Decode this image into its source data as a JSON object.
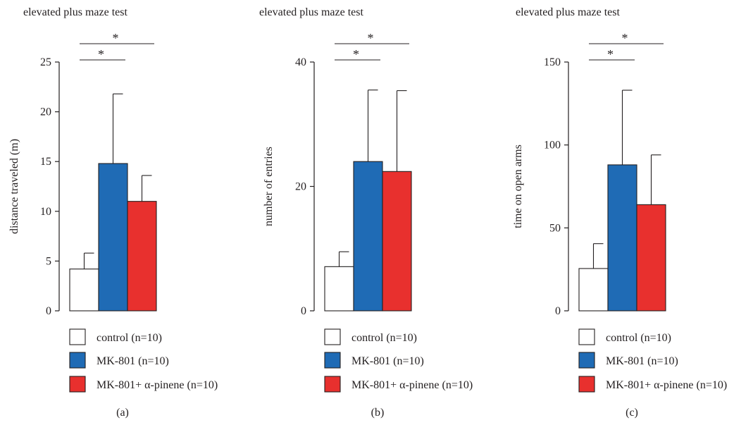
{
  "colors": {
    "control": "#ffffff",
    "mk801": "#1f6bb5",
    "pinene": "#e8302e",
    "ink": "#231f20"
  },
  "chart_data": [
    {
      "type": "bar",
      "panel_label": "(a)",
      "title": "elevated plus maze test",
      "xlabel": "",
      "ylabel": "distance traveled (m)",
      "ylim": [
        0,
        25
      ],
      "yticks": [
        0,
        5,
        10,
        15,
        20,
        25
      ],
      "categories": [
        "control (n=10)",
        "MK-801 (n=10)",
        "MK-801+ α-pinene (n=10)"
      ],
      "values": [
        4.2,
        14.8,
        11.0
      ],
      "errors": [
        1.6,
        7.0,
        2.6
      ],
      "bar_colors": [
        "#ffffff",
        "#1f6bb5",
        "#e8302e"
      ],
      "significance": [
        {
          "from": 0,
          "to": 1,
          "label": "*"
        },
        {
          "from": 0,
          "to": 2,
          "label": "*"
        }
      ],
      "grid": false,
      "legend": "bottom"
    },
    {
      "type": "bar",
      "panel_label": "(b)",
      "title": "elevated plus maze test",
      "xlabel": "",
      "ylabel": "number of entries",
      "ylim": [
        0,
        40
      ],
      "yticks": [
        0,
        20,
        40
      ],
      "categories": [
        "control (n=10)",
        "MK-801 (n=10)",
        "MK-801+ α-pinene (n=10)"
      ],
      "values": [
        7.1,
        24.0,
        22.4
      ],
      "errors": [
        2.4,
        11.5,
        13.0
      ],
      "bar_colors": [
        "#ffffff",
        "#1f6bb5",
        "#e8302e"
      ],
      "significance": [
        {
          "from": 0,
          "to": 1,
          "label": "*"
        },
        {
          "from": 0,
          "to": 2,
          "label": "*"
        }
      ],
      "grid": false,
      "legend": "bottom"
    },
    {
      "type": "bar",
      "panel_label": "(c)",
      "title": "elevated plus maze test",
      "xlabel": "",
      "ylabel": "time on open arms",
      "ylim": [
        0,
        150
      ],
      "yticks": [
        0,
        50,
        100,
        150
      ],
      "categories": [
        "control (n=10)",
        "MK-801 (n=10)",
        "MK-801+ α-pinene (n=10)"
      ],
      "values": [
        25.5,
        88.0,
        64.0
      ],
      "errors": [
        15.0,
        45.0,
        30.0
      ],
      "bar_colors": [
        "#ffffff",
        "#1f6bb5",
        "#e8302e"
      ],
      "significance": [
        {
          "from": 0,
          "to": 1,
          "label": "*"
        },
        {
          "from": 0,
          "to": 2,
          "label": "*"
        }
      ],
      "grid": false,
      "legend": "bottom"
    }
  ]
}
